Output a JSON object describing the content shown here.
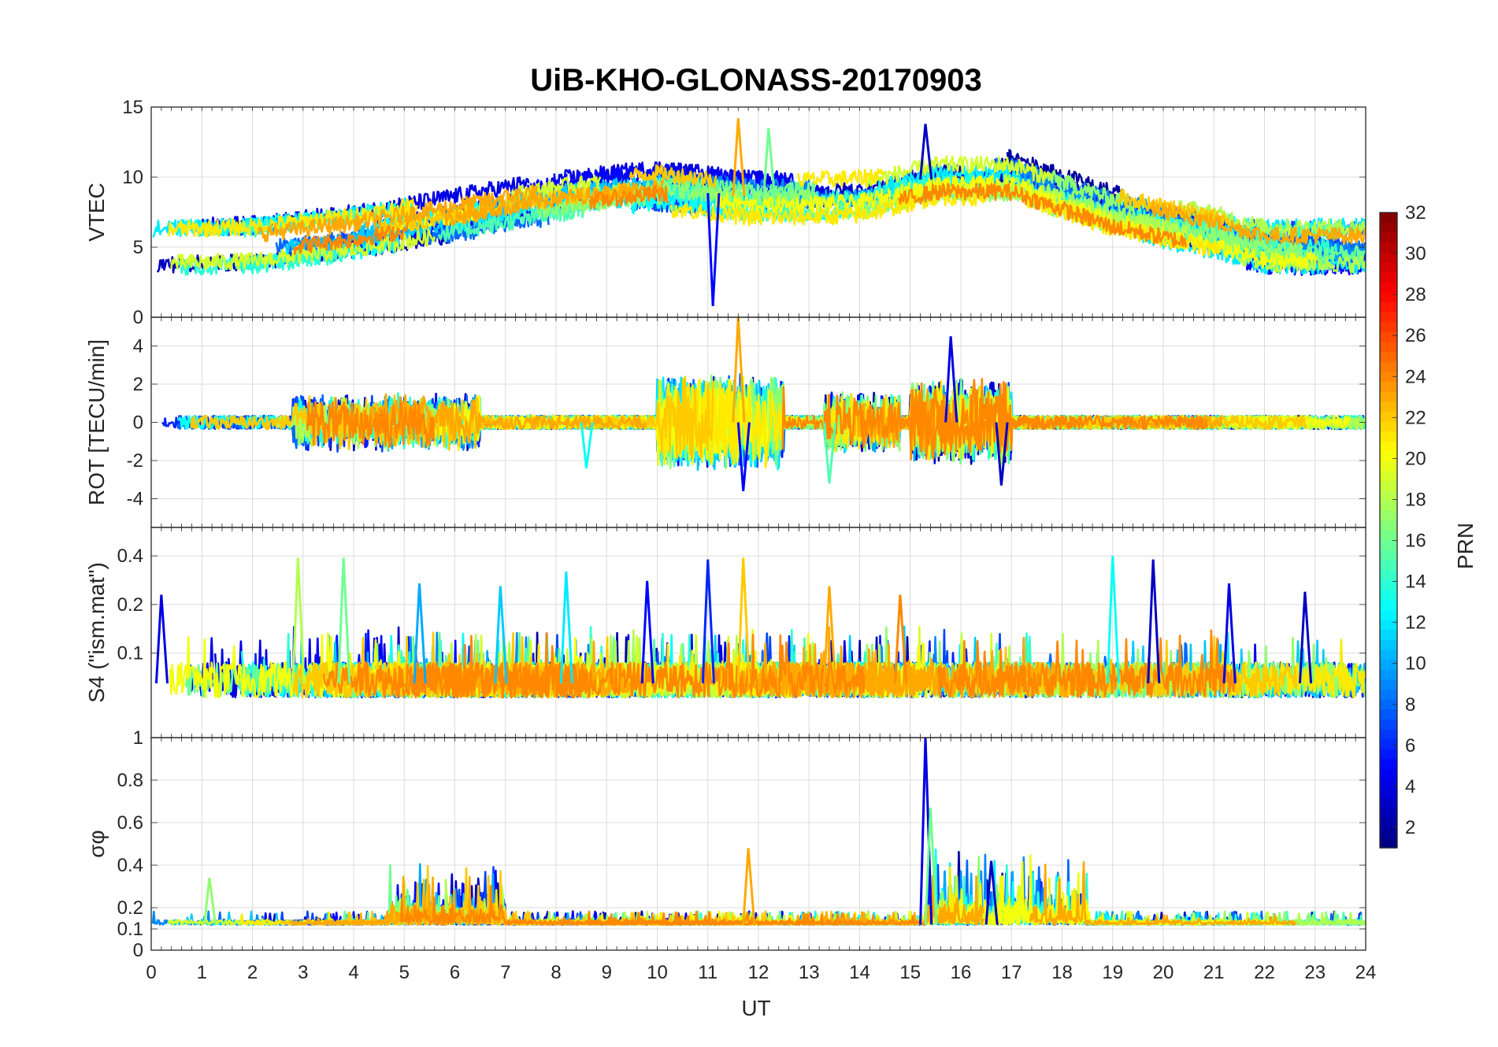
{
  "chart_data": {
    "type": "line",
    "title": "UiB-KHO-GLONASS-20170903",
    "xlabel": "UT",
    "xlim": [
      0,
      24
    ],
    "xticks": [
      0,
      1,
      2,
      3,
      4,
      5,
      6,
      7,
      8,
      9,
      10,
      11,
      12,
      13,
      14,
      15,
      16,
      17,
      18,
      19,
      20,
      21,
      22,
      23,
      24
    ],
    "panels": [
      {
        "id": "vtec",
        "ylabel": "VTEC",
        "ylim": [
          0,
          15
        ],
        "yticks": [
          0,
          5,
          10,
          15
        ],
        "baseline": [
          [
            0,
            5
          ],
          [
            2,
            5.2
          ],
          [
            4,
            6
          ],
          [
            6,
            7.2
          ],
          [
            8,
            8.5
          ],
          [
            10,
            9.3
          ],
          [
            12,
            8.5
          ],
          [
            14,
            8.7
          ],
          [
            15.5,
            10
          ],
          [
            17,
            10
          ],
          [
            19,
            7.5
          ],
          [
            21,
            6
          ],
          [
            22,
            5
          ],
          [
            24,
            5
          ]
        ],
        "noise": 0.6,
        "extra_spikes": [
          {
            "x": 11.6,
            "y": 14.2,
            "prn": 23
          },
          {
            "x": 11.1,
            "y": 0.8,
            "prn": 5
          },
          {
            "x": 15.3,
            "y": 13.8,
            "prn": 3
          },
          {
            "x": 12.2,
            "y": 13.5,
            "prn": 16
          }
        ]
      },
      {
        "id": "rot",
        "ylabel": "ROT [TECU/min]",
        "ylim": [
          -5.5,
          5.5
        ],
        "yticks": [
          -4,
          -2,
          0,
          2,
          4
        ],
        "baseline": [
          [
            0,
            0
          ],
          [
            24,
            0
          ]
        ],
        "noise": 0.35,
        "active_windows": [
          [
            2.8,
            6.5,
            1.2
          ],
          [
            10,
            12.5,
            2.2
          ],
          [
            13.3,
            14.8,
            1.3
          ],
          [
            15.0,
            17.0,
            2.0
          ]
        ],
        "extra_spikes": [
          {
            "x": 11.6,
            "y": 5.5,
            "prn": 23
          },
          {
            "x": 11.7,
            "y": -3.6,
            "prn": 5
          },
          {
            "x": 15.8,
            "y": 4.5,
            "prn": 4
          },
          {
            "x": 16.8,
            "y": -3.3,
            "prn": 3
          },
          {
            "x": 8.6,
            "y": -2.4,
            "prn": 13
          },
          {
            "x": 13.4,
            "y": -3.2,
            "prn": 15
          }
        ]
      },
      {
        "id": "s4",
        "ylabel": "S4 (\"ism.mat\")",
        "ylim": [
          0.03,
          0.6
        ],
        "yticks": [
          0.1,
          0.2,
          0.4
        ],
        "scale": "log",
        "baseline": [
          [
            0,
            0.065
          ],
          [
            24,
            0.065
          ]
        ],
        "noise": 0.01,
        "extra_spikes": [
          {
            "x": 2.9,
            "y": 0.39,
            "prn": 18
          },
          {
            "x": 3.8,
            "y": 0.39,
            "prn": 16
          },
          {
            "x": 5.3,
            "y": 0.27,
            "prn": 10
          },
          {
            "x": 6.9,
            "y": 0.26,
            "prn": 11
          },
          {
            "x": 8.2,
            "y": 0.32,
            "prn": 12
          },
          {
            "x": 9.8,
            "y": 0.28,
            "prn": 5
          },
          {
            "x": 11.0,
            "y": 0.38,
            "prn": 6
          },
          {
            "x": 11.7,
            "y": 0.39,
            "prn": 22
          },
          {
            "x": 13.4,
            "y": 0.26,
            "prn": 23
          },
          {
            "x": 14.8,
            "y": 0.23,
            "prn": 24
          },
          {
            "x": 19.0,
            "y": 0.4,
            "prn": 13
          },
          {
            "x": 19.8,
            "y": 0.38,
            "prn": 3
          },
          {
            "x": 21.3,
            "y": 0.27,
            "prn": 4
          },
          {
            "x": 22.8,
            "y": 0.24,
            "prn": 3
          },
          {
            "x": 0.2,
            "y": 0.23,
            "prn": 4
          }
        ]
      },
      {
        "id": "sigma",
        "ylabel": "σφ",
        "ylim": [
          0,
          1
        ],
        "yticks": [
          0,
          0.1,
          0.2,
          0.4,
          0.6,
          0.8,
          1
        ],
        "baseline": [
          [
            0,
            0.12
          ],
          [
            24,
            0.12
          ]
        ],
        "noise": 0.03,
        "active_windows": [
          [
            4.7,
            7.0,
            0.12
          ],
          [
            15.3,
            18.5,
            0.15
          ]
        ],
        "extra_spikes": [
          {
            "x": 15.3,
            "y": 1.0,
            "prn": 4
          },
          {
            "x": 15.4,
            "y": 0.67,
            "prn": 16
          },
          {
            "x": 11.8,
            "y": 0.48,
            "prn": 23
          },
          {
            "x": 16.6,
            "y": 0.42,
            "prn": 3
          },
          {
            "x": 1.15,
            "y": 0.34,
            "prn": 17
          }
        ]
      }
    ],
    "colorbar": {
      "label": "PRN",
      "min": 1,
      "max": 32,
      "ticks": [
        2,
        4,
        6,
        8,
        10,
        12,
        14,
        16,
        18,
        20,
        22,
        24,
        26,
        28,
        30,
        32
      ],
      "colormap": "jet"
    },
    "series_prns": [
      2,
      3,
      4,
      5,
      6,
      7,
      8,
      9,
      10,
      11,
      12,
      13,
      14,
      15,
      16,
      17,
      18,
      19,
      20,
      21,
      22,
      23,
      24
    ]
  }
}
